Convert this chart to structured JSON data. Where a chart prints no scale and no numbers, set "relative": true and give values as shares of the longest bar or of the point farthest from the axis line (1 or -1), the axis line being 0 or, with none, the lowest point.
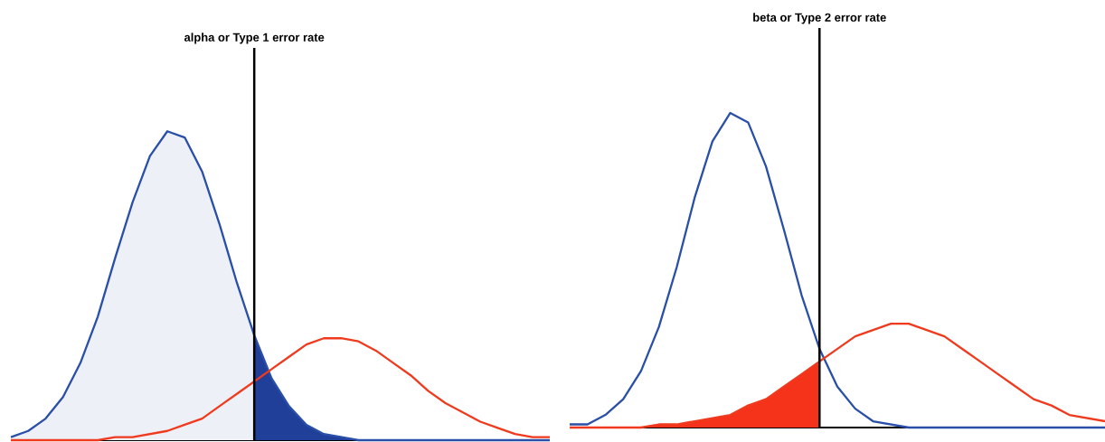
{
  "chart_data": [
    {
      "type": "line",
      "relative": true,
      "categories": [
        null,
        null,
        null,
        null,
        null,
        null,
        null,
        null,
        null,
        null,
        null,
        null,
        null,
        null,
        null,
        null,
        null,
        null,
        null,
        null,
        null,
        null,
        null,
        null,
        null,
        null,
        null,
        null,
        null,
        null,
        null,
        null
      ],
      "annotations": [
        "alpha or Type 1 error rate"
      ],
      "series": [
        {
          "type": "area",
          "color": "#eef0f8",
          "values": [
            0.01,
            0.03,
            0.07,
            0.14,
            0.25,
            0.4,
            0.59,
            0.77,
            0.92,
            1.0,
            0.98,
            0.87,
            0.7,
            0.51,
            0.34,
            null,
            null,
            null,
            null,
            null,
            null,
            null,
            null,
            null,
            null,
            null,
            null,
            null,
            null,
            null,
            null,
            null
          ]
        },
        {
          "type": "area",
          "color": "#1f3f99",
          "values": [
            null,
            null,
            null,
            null,
            null,
            null,
            null,
            null,
            null,
            null,
            null,
            null,
            null,
            null,
            0.34,
            0.2,
            0.11,
            0.05,
            0.02,
            0.01,
            0.0,
            0.0,
            0.0,
            0.0,
            0.0,
            0.0,
            0.0,
            0.0,
            0.0,
            0.0,
            0.0,
            0.0
          ]
        },
        {
          "color": "#2a4fa8",
          "values": [
            0.01,
            0.03,
            0.07,
            0.14,
            0.25,
            0.4,
            0.59,
            0.77,
            0.92,
            1.0,
            0.98,
            0.87,
            0.7,
            0.51,
            0.34,
            0.2,
            0.11,
            0.05,
            0.02,
            0.01,
            0.0,
            0.0,
            0.0,
            0.0,
            0.0,
            0.0,
            0.0,
            0.0,
            0.0,
            0.0,
            0.0,
            0.0
          ]
        },
        {
          "color": "#f03a1e",
          "values": [
            0.0,
            0.0,
            0.0,
            0.0,
            0.0,
            0.0,
            0.01,
            0.01,
            0.02,
            0.03,
            0.05,
            0.07,
            0.11,
            0.15,
            0.19,
            0.23,
            0.27,
            0.31,
            0.33,
            0.33,
            0.32,
            0.29,
            0.25,
            0.21,
            0.16,
            0.12,
            0.09,
            0.06,
            0.04,
            0.02,
            0.01,
            0.01
          ]
        }
      ]
    },
    {
      "type": "line",
      "relative": true,
      "categories": [
        null,
        null,
        null,
        null,
        null,
        null,
        null,
        null,
        null,
        null,
        null,
        null,
        null,
        null,
        null,
        null,
        null,
        null,
        null,
        null,
        null,
        null,
        null,
        null,
        null,
        null,
        null,
        null,
        null,
        null,
        null
      ],
      "annotations": [
        "beta or Type 2 error rate"
      ],
      "series": [
        {
          "type": "area",
          "color": "#f5321a",
          "values": [
            0.0,
            0.0,
            0.0,
            0.0,
            0.0,
            0.01,
            0.01,
            0.02,
            0.03,
            0.04,
            0.07,
            0.09,
            0.13,
            0.17,
            0.21,
            null,
            null,
            null,
            null,
            null,
            null,
            null,
            null,
            null,
            null,
            null,
            null,
            null,
            null,
            null,
            null
          ]
        },
        {
          "color": "#2a4fa8",
          "values": [
            0.01,
            0.01,
            0.04,
            0.09,
            0.18,
            0.32,
            0.51,
            0.73,
            0.91,
            1.0,
            0.97,
            0.83,
            0.63,
            0.42,
            0.25,
            0.13,
            0.06,
            0.02,
            0.01,
            0.0,
            0.0,
            0.0,
            0.0,
            0.0,
            0.0,
            0.0,
            0.0,
            0.0,
            0.0,
            0.0,
            0.0
          ]
        },
        {
          "color": "#f03a1e",
          "values": [
            0.0,
            0.0,
            0.0,
            0.0,
            0.0,
            0.01,
            0.01,
            0.02,
            0.03,
            0.04,
            0.07,
            0.09,
            0.13,
            0.17,
            0.21,
            0.25,
            0.29,
            0.31,
            0.33,
            0.33,
            0.31,
            0.29,
            0.25,
            0.21,
            0.17,
            0.13,
            0.09,
            0.07,
            0.04,
            0.03,
            0.02
          ]
        }
      ]
    }
  ]
}
